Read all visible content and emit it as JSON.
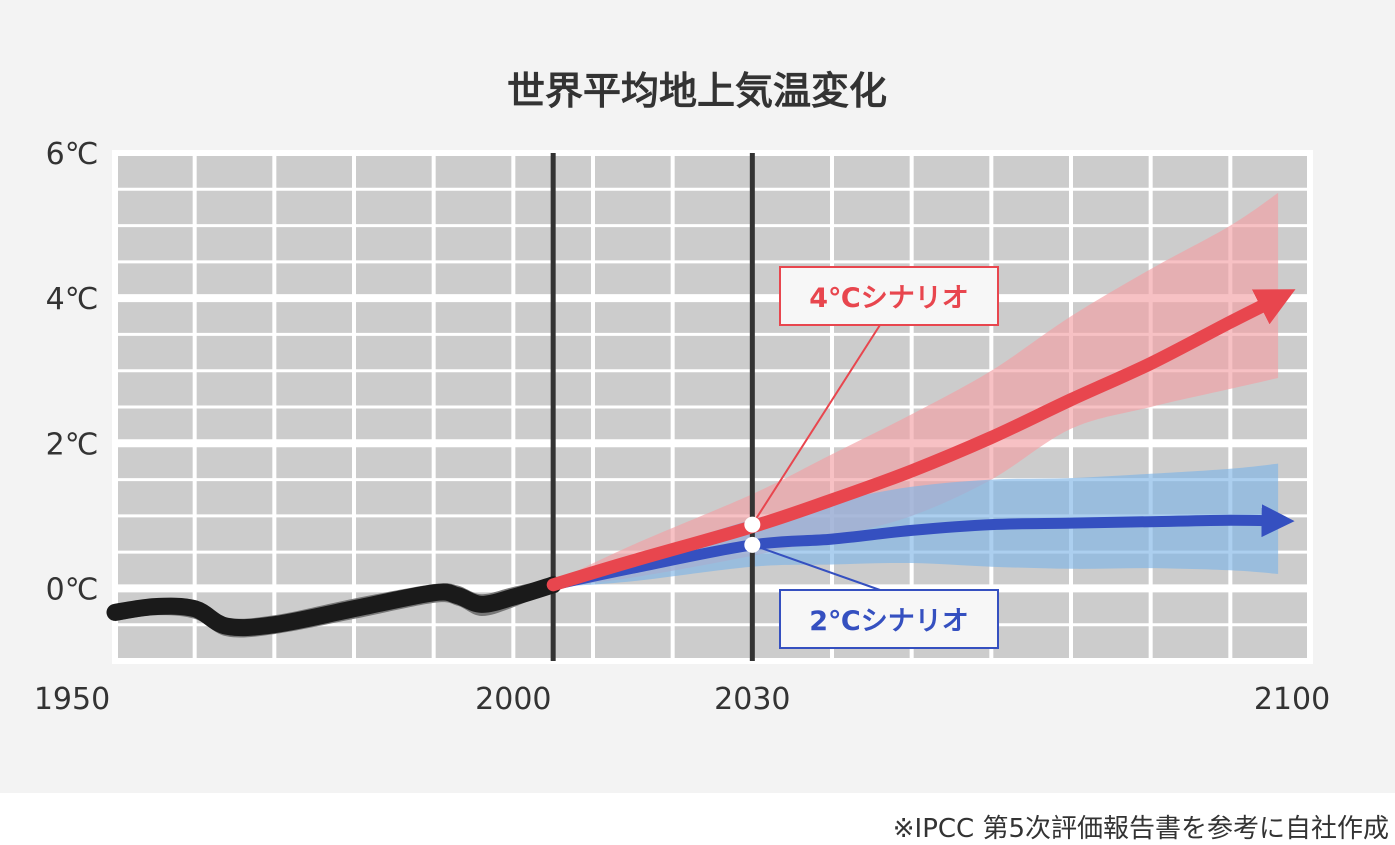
{
  "chart_data": {
    "type": "line",
    "title": "世界平均地上気温変化",
    "xlim": [
      1950,
      2100
    ],
    "ylim": [
      -1,
      6
    ],
    "x_ticks": [
      {
        "value": 1950,
        "label": "1950"
      },
      {
        "value": 2000,
        "label": "2000"
      },
      {
        "value": 2030,
        "label": "2030"
      },
      {
        "value": 2100,
        "label": "2100"
      }
    ],
    "y_ticks": [
      {
        "value": 0,
        "label": "0℃"
      },
      {
        "value": 2,
        "label": "2℃"
      },
      {
        "value": 4,
        "label": "4℃"
      },
      {
        "value": 6,
        "label": "6℃"
      }
    ],
    "grid": true,
    "reference_lines_x": [
      2005,
      2030
    ],
    "series": [
      {
        "role": "historical",
        "color": "#1a1a1a",
        "band_color": "#6e6e6e",
        "x": [
          1950,
          1955,
          1960,
          1964,
          1970,
          1980,
          1990,
          1993,
          1996,
          2000,
          2005
        ],
        "y": [
          -0.33,
          -0.25,
          -0.28,
          -0.52,
          -0.5,
          -0.28,
          -0.06,
          -0.1,
          -0.22,
          -0.12,
          0.05
        ],
        "band_low": [
          -0.45,
          -0.37,
          -0.42,
          -0.66,
          -0.63,
          -0.42,
          -0.2,
          -0.24,
          -0.38,
          -0.26,
          -0.02
        ],
        "band_high": [
          -0.23,
          -0.15,
          -0.16,
          -0.4,
          -0.37,
          -0.14,
          0.06,
          0.04,
          -0.08,
          0.02,
          0.14
        ]
      },
      {
        "role": "scenario-4c",
        "label": "4℃シナリオ",
        "color": "#e8464e",
        "band_color": "#f2a0a4",
        "x": [
          2005,
          2015,
          2030,
          2040,
          2050,
          2060,
          2070,
          2080,
          2090,
          2096
        ],
        "y": [
          0.05,
          0.38,
          0.85,
          1.22,
          1.62,
          2.08,
          2.6,
          3.1,
          3.67,
          4.0
        ],
        "band_low": [
          0.02,
          0.15,
          0.45,
          0.7,
          1.0,
          1.5,
          2.2,
          2.5,
          2.75,
          2.9
        ],
        "band_high": [
          0.08,
          0.6,
          1.3,
          1.85,
          2.4,
          3.0,
          3.75,
          4.4,
          5.0,
          5.45
        ]
      },
      {
        "role": "scenario-2c",
        "label": "2℃シナリオ",
        "color": "#3550c0",
        "band_color": "#7fb6e6",
        "x": [
          2005,
          2015,
          2030,
          2040,
          2050,
          2060,
          2070,
          2080,
          2090,
          2096
        ],
        "y": [
          0.05,
          0.28,
          0.6,
          0.68,
          0.8,
          0.88,
          0.9,
          0.92,
          0.94,
          0.93
        ],
        "band_low": [
          0.02,
          0.1,
          0.3,
          0.33,
          0.35,
          0.3,
          0.27,
          0.28,
          0.25,
          0.2
        ],
        "band_high": [
          0.08,
          0.42,
          0.95,
          1.2,
          1.4,
          1.5,
          1.52,
          1.58,
          1.65,
          1.72
        ]
      }
    ],
    "annotations": [
      {
        "label": "4℃シナリオ",
        "at_x": 2030,
        "at_y": 0.88,
        "color": "#e8464e"
      },
      {
        "label": "2℃シナリオ",
        "at_x": 2030,
        "at_y": 0.6,
        "color": "#3550c0"
      }
    ]
  },
  "source_note": "※IPCC 第5次評価報告書を参考に自社作成",
  "colors": {
    "panel_bg": "#f3f3f3",
    "plot_bg": "#cccccc",
    "grid": "#ffffff",
    "text": "#333333",
    "reference_line": "#333333"
  }
}
